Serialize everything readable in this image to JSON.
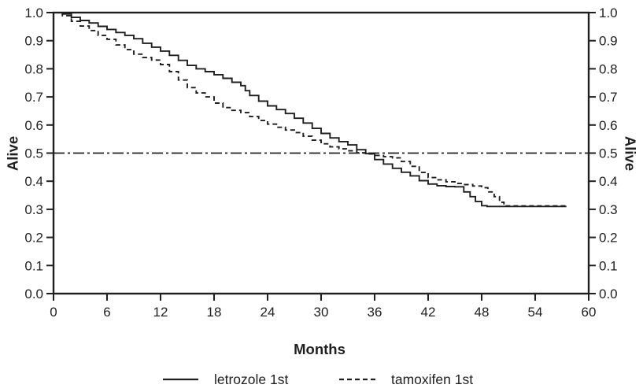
{
  "figure": {
    "xlabel": "Months",
    "ylabel_left": "Alive",
    "ylabel_right": "Alive",
    "legend": [
      {
        "label": "letrozole 1st",
        "style": "solid"
      },
      {
        "label": "tamoxifen 1st",
        "style": "dashed"
      }
    ]
  },
  "colors": {
    "line": "#1f1f1f",
    "text": "#1f1f1f",
    "background": "#ffffff"
  },
  "chart_data": {
    "type": "line",
    "subtype": "kaplan-meier-step",
    "title": "",
    "xlabel": "Months",
    "ylabel": "Alive",
    "xlim": [
      0,
      60
    ],
    "ylim": [
      0.0,
      1.0
    ],
    "x_ticks": [
      0,
      6,
      12,
      18,
      24,
      30,
      36,
      42,
      48,
      54,
      60
    ],
    "y_ticks": [
      0.0,
      0.1,
      0.2,
      0.3,
      0.4,
      0.5,
      0.6,
      0.7,
      0.8,
      0.9,
      1.0
    ],
    "y_axis_sides": [
      "left",
      "right"
    ],
    "grid": false,
    "legend_position": "bottom",
    "reference_line": {
      "y": 0.5,
      "style": "dash-dot"
    },
    "series": [
      {
        "name": "letrozole 1st",
        "line_style": "solid",
        "color": "#1f1f1f",
        "points": [
          [
            0,
            1.0
          ],
          [
            1,
            0.995
          ],
          [
            2,
            0.983
          ],
          [
            3,
            0.972
          ],
          [
            4,
            0.963
          ],
          [
            5,
            0.951
          ],
          [
            6,
            0.94
          ],
          [
            7,
            0.929
          ],
          [
            8,
            0.919
          ],
          [
            9,
            0.907
          ],
          [
            10,
            0.891
          ],
          [
            11,
            0.877
          ],
          [
            12,
            0.863
          ],
          [
            13,
            0.848
          ],
          [
            14,
            0.83
          ],
          [
            15,
            0.812
          ],
          [
            16,
            0.8
          ],
          [
            17,
            0.79
          ],
          [
            18,
            0.779
          ],
          [
            19,
            0.766
          ],
          [
            20,
            0.752
          ],
          [
            21,
            0.74
          ],
          [
            21.5,
            0.722
          ],
          [
            22,
            0.705
          ],
          [
            23,
            0.685
          ],
          [
            24,
            0.668
          ],
          [
            25,
            0.655
          ],
          [
            26,
            0.641
          ],
          [
            27,
            0.624
          ],
          [
            28,
            0.607
          ],
          [
            29,
            0.588
          ],
          [
            30,
            0.57
          ],
          [
            31,
            0.554
          ],
          [
            32,
            0.541
          ],
          [
            33,
            0.529
          ],
          [
            34,
            0.512
          ],
          [
            35,
            0.498
          ],
          [
            36,
            0.477
          ],
          [
            37,
            0.461
          ],
          [
            38,
            0.446
          ],
          [
            39,
            0.432
          ],
          [
            40,
            0.419
          ],
          [
            41,
            0.402
          ],
          [
            42,
            0.39
          ],
          [
            43,
            0.384
          ],
          [
            44,
            0.381
          ],
          [
            45,
            0.38
          ],
          [
            46,
            0.362
          ],
          [
            46.7,
            0.345
          ],
          [
            47.3,
            0.328
          ],
          [
            48,
            0.313
          ],
          [
            48.6,
            0.31
          ],
          [
            57.5,
            0.31
          ]
        ]
      },
      {
        "name": "tamoxifen 1st",
        "line_style": "dashed",
        "color": "#1f1f1f",
        "points": [
          [
            0,
            1.0
          ],
          [
            1,
            0.989
          ],
          [
            2,
            0.969
          ],
          [
            3,
            0.952
          ],
          [
            4,
            0.936
          ],
          [
            5,
            0.919
          ],
          [
            6,
            0.905
          ],
          [
            7,
            0.885
          ],
          [
            8,
            0.868
          ],
          [
            9,
            0.852
          ],
          [
            10,
            0.84
          ],
          [
            11,
            0.831
          ],
          [
            12,
            0.815
          ],
          [
            13,
            0.79
          ],
          [
            14,
            0.76
          ],
          [
            15,
            0.733
          ],
          [
            16,
            0.714
          ],
          [
            17,
            0.7
          ],
          [
            18,
            0.678
          ],
          [
            19,
            0.662
          ],
          [
            20,
            0.652
          ],
          [
            21,
            0.644
          ],
          [
            22,
            0.63
          ],
          [
            23,
            0.616
          ],
          [
            24,
            0.603
          ],
          [
            25,
            0.592
          ],
          [
            26,
            0.582
          ],
          [
            27,
            0.573
          ],
          [
            28,
            0.56
          ],
          [
            29,
            0.546
          ],
          [
            30,
            0.533
          ],
          [
            31,
            0.522
          ],
          [
            32,
            0.515
          ],
          [
            33,
            0.508
          ],
          [
            34,
            0.501
          ],
          [
            35,
            0.497
          ],
          [
            36,
            0.492
          ],
          [
            37,
            0.487
          ],
          [
            38,
            0.483
          ],
          [
            39,
            0.47
          ],
          [
            40,
            0.453
          ],
          [
            41,
            0.431
          ],
          [
            42,
            0.413
          ],
          [
            43,
            0.405
          ],
          [
            44,
            0.398
          ],
          [
            45,
            0.392
          ],
          [
            46,
            0.388
          ],
          [
            47,
            0.383
          ],
          [
            48,
            0.377
          ],
          [
            48.7,
            0.362
          ],
          [
            49.4,
            0.345
          ],
          [
            50,
            0.325
          ],
          [
            50.5,
            0.312
          ],
          [
            57.6,
            0.312
          ]
        ]
      }
    ]
  }
}
